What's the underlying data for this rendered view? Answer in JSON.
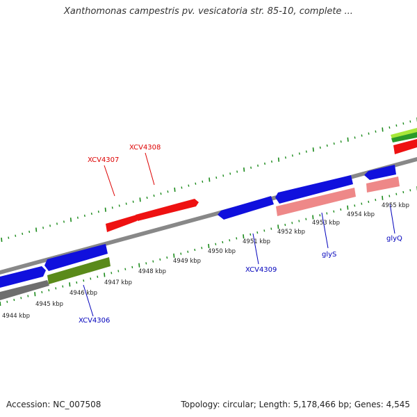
{
  "title": "Xanthomonas campestris pv. vesicatoria str. 85-10, complete ...",
  "footer": {
    "accession": "Accession: NC_007508",
    "summary": "Topology: circular; Length: 5,178,466 bp; Genes: 4,545"
  },
  "colors": {
    "gene_red": "#ee1111",
    "gene_blue": "#1010dd",
    "gene_pink": "#ee8888",
    "gene_olive": "#5a8a1a",
    "gene_lime": "#a8e83a",
    "gene_green": "#2a9a2a",
    "backbone": "#888888",
    "tick": "#1a8a1a",
    "label_red": "#dd0000",
    "label_blue": "#0000bb"
  },
  "kbp_labels": [
    "4944 kbp",
    "4945 kbp",
    "4946 kbp",
    "4947 kbp",
    "4948 kbp",
    "4949 kbp",
    "4950 kbp",
    "4951 kbp",
    "4952 kbp",
    "4953 kbp",
    "4954 kbp",
    "4955 kbp"
  ],
  "gene_labels": {
    "XCV4306": "XCV4306",
    "XCV4307": "XCV4307",
    "XCV4308": "XCV4308",
    "XCV4309": "XCV4309",
    "glyS": "glyS",
    "glyQ": "glyQ"
  }
}
